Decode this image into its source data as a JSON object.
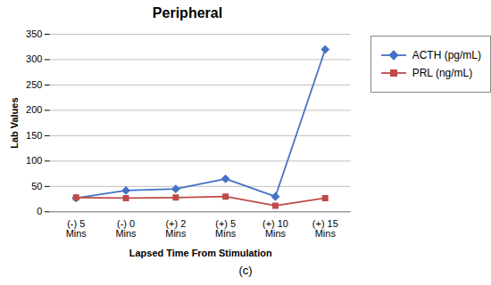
{
  "chart_data": {
    "type": "line",
    "title": "Peripheral",
    "caption": "(c)",
    "xlabel": "Lapsed Time From Stimulation",
    "ylabel": "Lab Values",
    "categories": [
      "(-) 5\nMins",
      "(-) 0\nMins",
      "(+) 2\nMins",
      "(+) 5\nMins",
      "(+) 10\nMins",
      "(+) 15\nMins"
    ],
    "series": [
      {
        "name": "ACTH (pg/mL)",
        "color": "#4472C4",
        "marker": "diamond",
        "values": [
          27,
          42,
          45,
          65,
          30,
          320
        ]
      },
      {
        "name": "PRL (ng/mL)",
        "color": "#BE4B48",
        "marker": "square",
        "values": [
          28,
          27,
          28,
          30,
          12,
          27
        ]
      }
    ],
    "ylim": [
      0,
      350
    ],
    "yticks": [
      0,
      50,
      100,
      150,
      200,
      250,
      300,
      350
    ],
    "grid": true,
    "legend": "right"
  }
}
